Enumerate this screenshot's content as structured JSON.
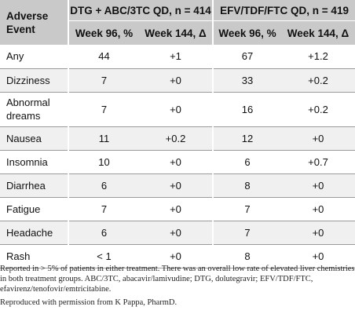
{
  "table": {
    "header": {
      "row_label": "Adverse Event",
      "groups": [
        "DTG + ABC/3TC QD, n = 414",
        "EFV/TDF/FTC QD, n = 419"
      ],
      "subcols": [
        "Week 96, %",
        "Week 144, Δ",
        "Week 96, %",
        "Week 144, Δ"
      ]
    },
    "rows": [
      {
        "event": "Any",
        "dtg_w96": "44",
        "dtg_w144": "+1",
        "efv_w96": "67",
        "efv_w144": "+1.2"
      },
      {
        "event": "Dizziness",
        "dtg_w96": "7",
        "dtg_w144": "+0",
        "efv_w96": "33",
        "efv_w144": "+0.2"
      },
      {
        "event": "Abnormal dreams",
        "dtg_w96": "7",
        "dtg_w144": "+0",
        "efv_w96": "16",
        "efv_w144": "+0.2"
      },
      {
        "event": "Nausea",
        "dtg_w96": "11",
        "dtg_w144": "+0.2",
        "efv_w96": "12",
        "efv_w144": "+0"
      },
      {
        "event": "Insomnia",
        "dtg_w96": "10",
        "dtg_w144": "+0",
        "efv_w96": "6",
        "efv_w144": "+0.7"
      },
      {
        "event": "Diarrhea",
        "dtg_w96": "6",
        "dtg_w144": "+0",
        "efv_w96": "8",
        "efv_w144": "+0"
      },
      {
        "event": "Fatigue",
        "dtg_w96": "7",
        "dtg_w144": "+0",
        "efv_w96": "7",
        "efv_w144": "+0"
      },
      {
        "event": "Headache",
        "dtg_w96": "6",
        "dtg_w144": "+0",
        "efv_w96": "7",
        "efv_w144": "+0"
      },
      {
        "event": "Rash",
        "dtg_w96": "< 1",
        "dtg_w144": "+0",
        "efv_w96": "8",
        "efv_w144": "+0"
      }
    ]
  },
  "footnote": "Reported in > 5% of patients in either treatment. There was an overall low rate of elevated liver chemistries in both treatment groups. ABC/3TC, abacavir/lamivudine; DTG, dolutegravir; EFV/TDF/FTC, efavirenz/tenofovir/emtricitabine.",
  "credit": "Reproduced with permission from K Pappa, PharmD."
}
